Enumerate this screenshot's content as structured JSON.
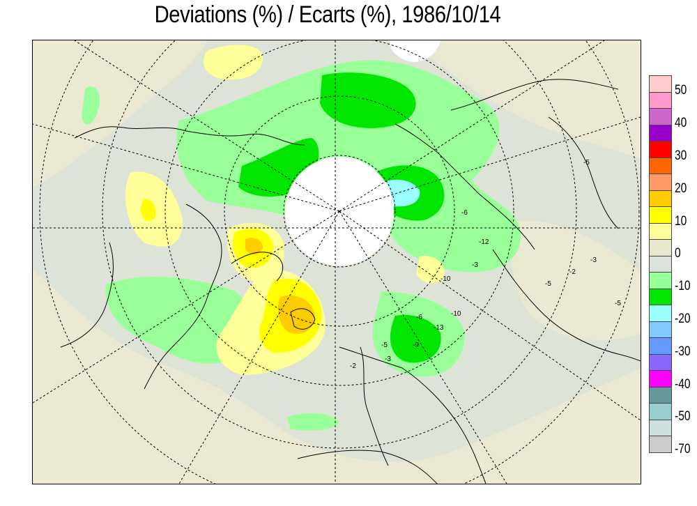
{
  "title": "Deviations (%) / Ecarts (%), 1986/10/14",
  "legend": {
    "colors": [
      "#ffcccc",
      "#ff99cc",
      "#cc66cc",
      "#9900cc",
      "#ff0000",
      "#ff6600",
      "#ff9966",
      "#ffcc00",
      "#ffff00",
      "#ffff99",
      "#e8e8cc",
      "#d9e3d9",
      "#99ff99",
      "#00e600",
      "#99ffff",
      "#80c8ff",
      "#6699ff",
      "#8866ff",
      "#ff00ff",
      "#669999",
      "#99cccc",
      "#cce0dd",
      "#cccccc"
    ],
    "tick_labels": [
      "50",
      "40",
      "30",
      "20",
      "10",
      "0",
      "-10",
      "-20",
      "-30",
      "-40",
      "-50",
      "-70"
    ]
  },
  "colors": {
    "background": "#dde3d6",
    "zero_band": "#ebe9d2",
    "light_green": "#99ff99",
    "green": "#00e600",
    "cyan": "#99ffff",
    "light_yellow": "#ffff99",
    "yellow": "#ffff00",
    "orange": "#ffcc00",
    "polar_cap": "#ffffff"
  }
}
